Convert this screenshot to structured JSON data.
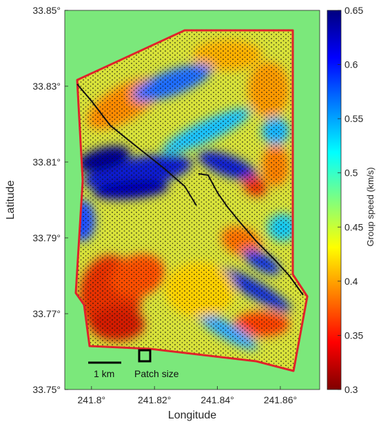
{
  "chart_data": {
    "type": "heatmap",
    "title": "",
    "xlabel": "Longitude",
    "ylabel": "Latitude",
    "x_ticks": [
      "241.8°",
      "241.82°",
      "241.84°",
      "241.86°"
    ],
    "x_tick_values": [
      241.8,
      241.82,
      241.84,
      241.86
    ],
    "y_ticks": [
      "33.85°",
      "33.83°",
      "33.81°",
      "33.79°",
      "33.77°",
      "33.75°"
    ],
    "y_tick_values": [
      33.85,
      33.83,
      33.81,
      33.79,
      33.77,
      33.75
    ],
    "xlim": [
      241.7915,
      241.8725
    ],
    "ylim": [
      33.75,
      33.85
    ],
    "colorbar": {
      "label": "Group speed (km/s)",
      "ticks": [
        "0.65",
        "0.6",
        "0.55",
        "0.5",
        "0.45",
        "0.4",
        "0.35",
        "0.3"
      ],
      "tick_values": [
        0.65,
        0.6,
        0.55,
        0.5,
        0.45,
        0.4,
        0.35,
        0.3
      ],
      "range": [
        0.3,
        0.65
      ],
      "colormap": "jet",
      "stops": [
        "#7f0000",
        "#ff0000",
        "#ff7f00",
        "#ffff00",
        "#7fff7f",
        "#00ffff",
        "#007fff",
        "#0000ff",
        "#00007f"
      ]
    },
    "background_color": "#7be87b",
    "outline_color": "#e0222a",
    "annotations": {
      "scale_bar_label": "1 km",
      "patch_label": "Patch size"
    },
    "grid": false
  }
}
